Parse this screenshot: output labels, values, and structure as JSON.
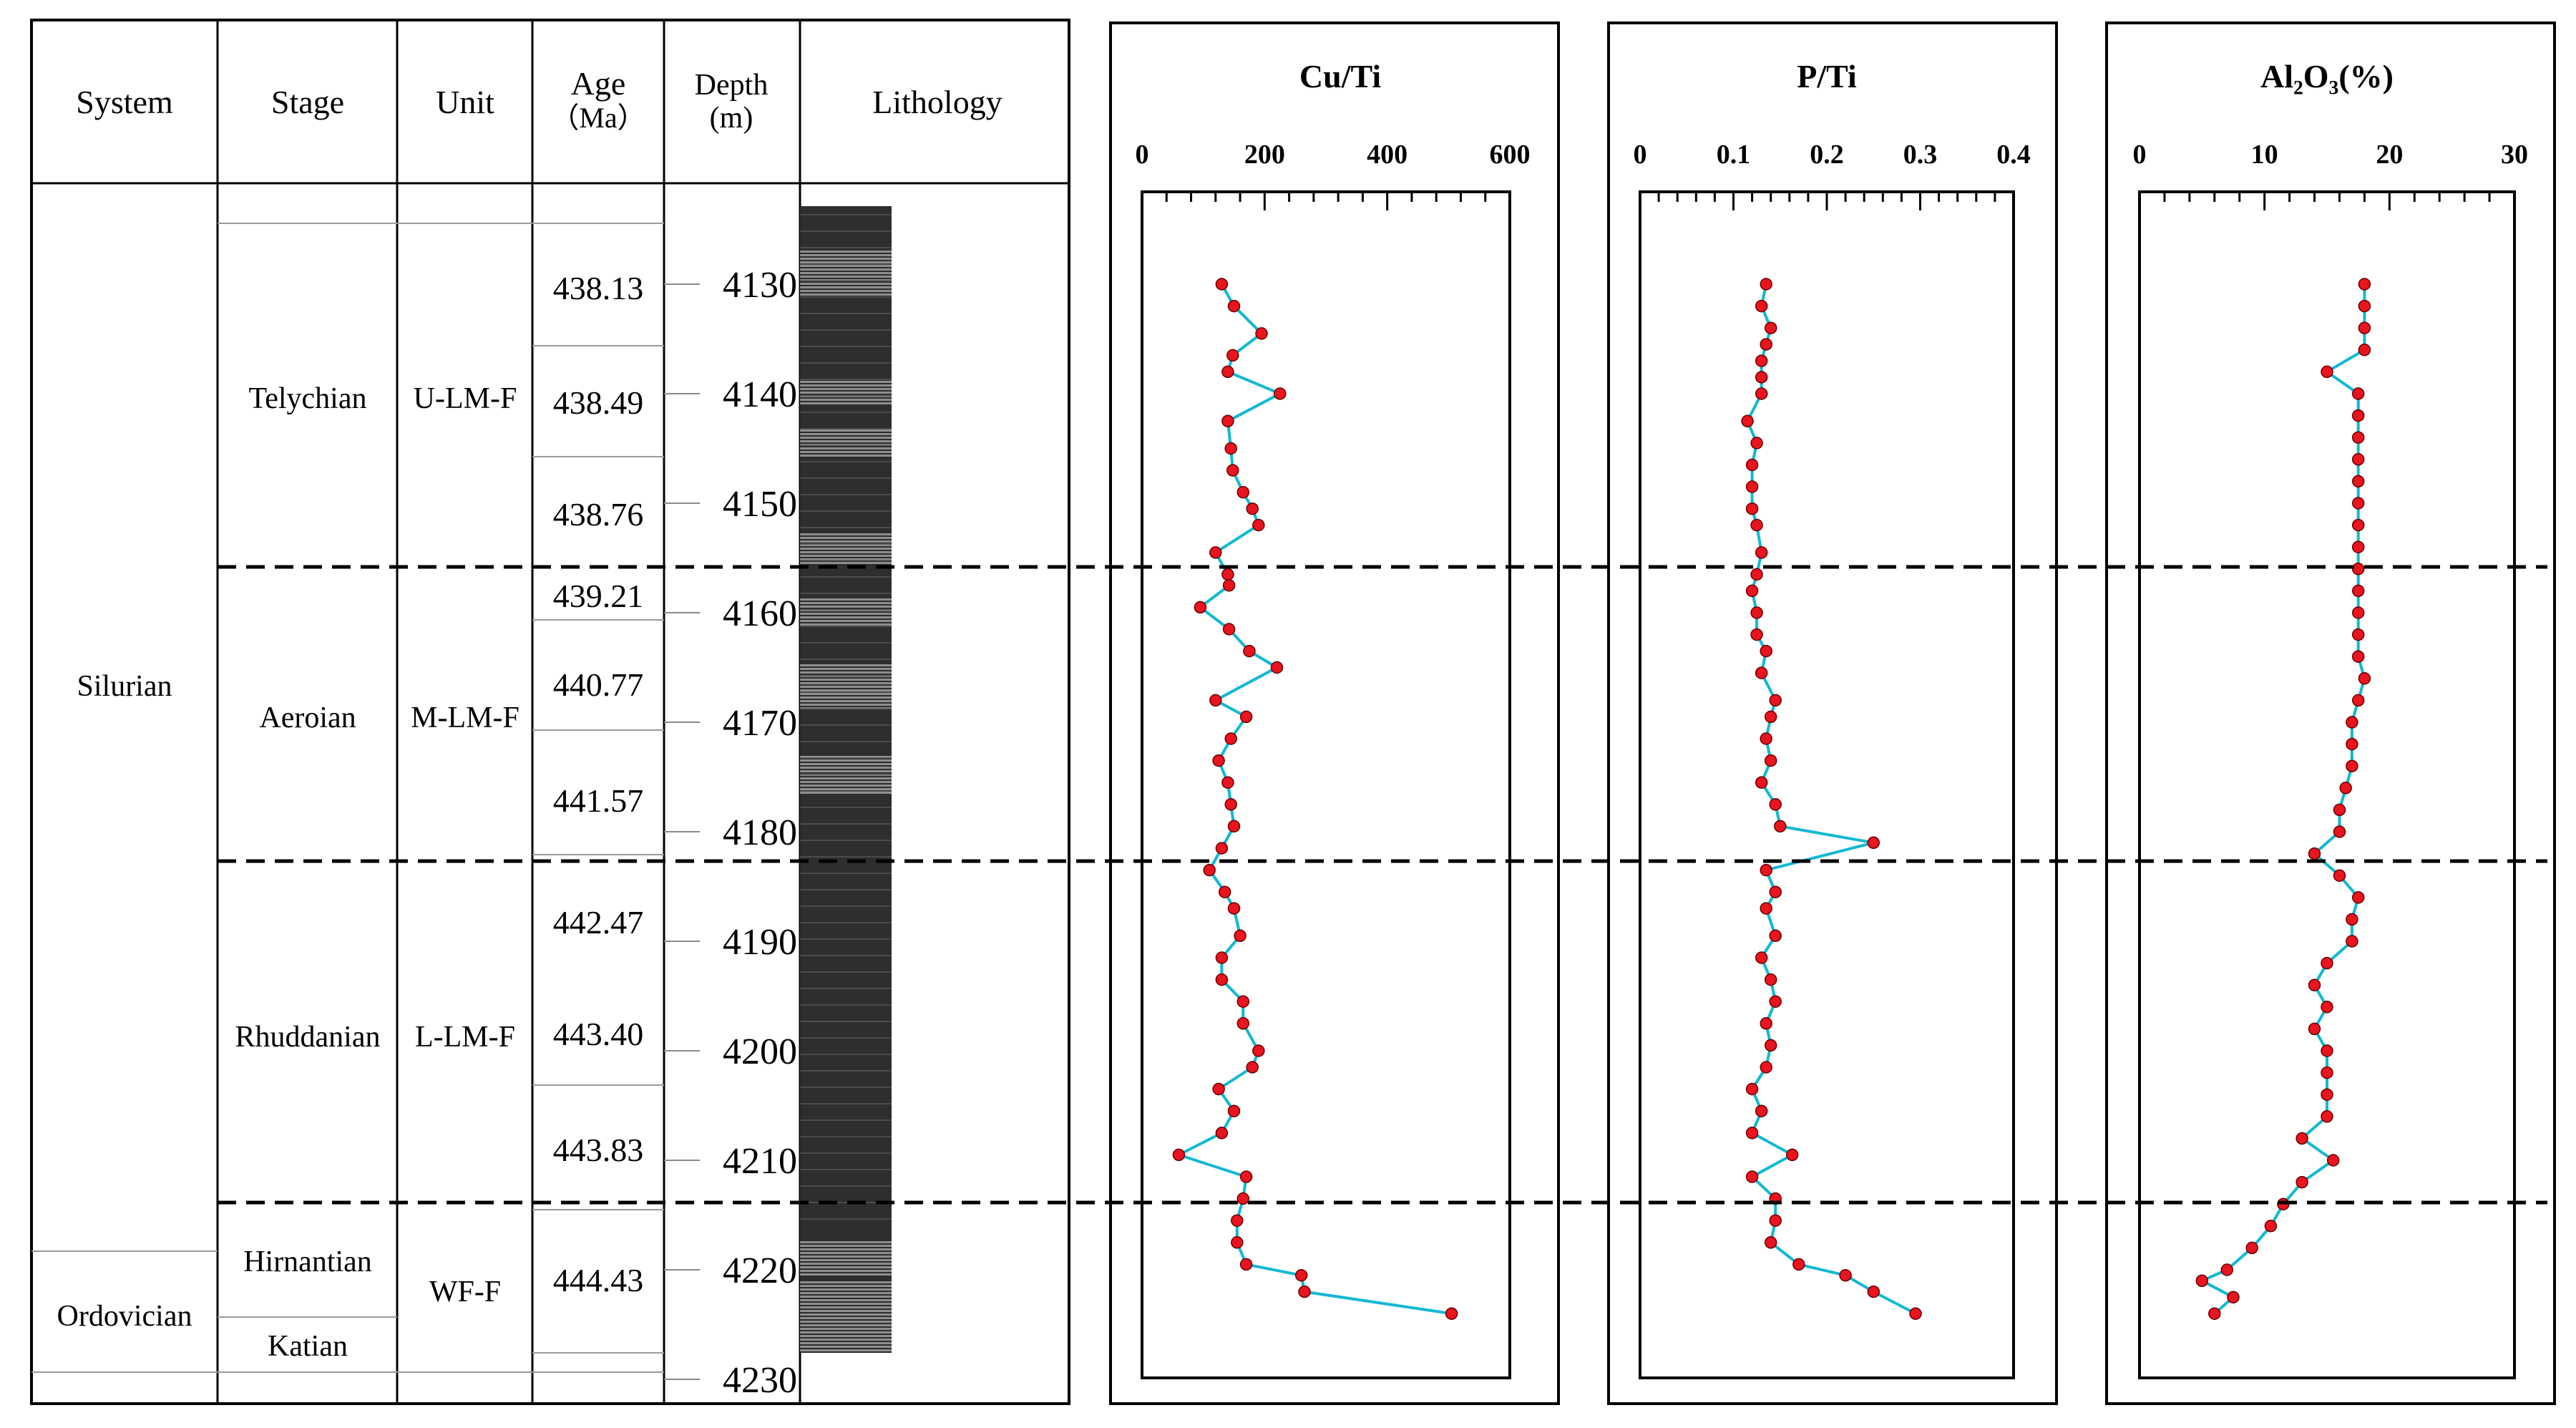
{
  "table": {
    "headers": {
      "system": "System",
      "stage": "Stage",
      "unit": "Unit",
      "age_line1": "Age",
      "age_line2": "（Ma）",
      "depth_line1": "Depth",
      "depth_line2": "(m)",
      "lithology": "Lithology"
    },
    "systems": [
      "Silurian",
      "Ordovician"
    ],
    "stages": [
      "Telychian",
      "Aeroian",
      "Rhuddanian",
      "Hirnantian",
      "Katian"
    ],
    "units": [
      "U-LM-F",
      "M-LM-F",
      "L-LM-F",
      "WF-F"
    ],
    "ages": [
      "438.13",
      "438.49",
      "438.76",
      "439.21",
      "440.77",
      "441.57",
      "442.47",
      "443.40",
      "443.83",
      "444.43"
    ],
    "depths": [
      "4130",
      "4140",
      "4150",
      "4160",
      "4170",
      "4180",
      "4190",
      "4200",
      "4210",
      "4220",
      "4230"
    ]
  },
  "chart_data": [
    {
      "type": "line",
      "title": "Cu/Ti",
      "x_ticks": [
        "0",
        "200",
        "400",
        "600"
      ],
      "xlim": [
        0,
        600
      ],
      "ylim": [
        4122,
        4230
      ],
      "y_inverted": true,
      "line_color": "#12b8d4",
      "marker_color": "#e8141e",
      "points": [
        {
          "depth": 4130,
          "value": 130
        },
        {
          "depth": 4132,
          "value": 150
        },
        {
          "depth": 4134.5,
          "value": 195
        },
        {
          "depth": 4136.5,
          "value": 148
        },
        {
          "depth": 4138,
          "value": 140
        },
        {
          "depth": 4140,
          "value": 225
        },
        {
          "depth": 4142.5,
          "value": 140
        },
        {
          "depth": 4145,
          "value": 145
        },
        {
          "depth": 4147,
          "value": 148
        },
        {
          "depth": 4149,
          "value": 165
        },
        {
          "depth": 4150.5,
          "value": 180
        },
        {
          "depth": 4152,
          "value": 190
        },
        {
          "depth": 4154.5,
          "value": 120
        },
        {
          "depth": 4156.5,
          "value": 140
        },
        {
          "depth": 4157.5,
          "value": 142
        },
        {
          "depth": 4159.5,
          "value": 95
        },
        {
          "depth": 4161.5,
          "value": 142
        },
        {
          "depth": 4163.5,
          "value": 175
        },
        {
          "depth": 4165,
          "value": 220
        },
        {
          "depth": 4168,
          "value": 120
        },
        {
          "depth": 4169.5,
          "value": 170
        },
        {
          "depth": 4171.5,
          "value": 145
        },
        {
          "depth": 4173.5,
          "value": 125
        },
        {
          "depth": 4175.5,
          "value": 140
        },
        {
          "depth": 4177.5,
          "value": 145
        },
        {
          "depth": 4179.5,
          "value": 150
        },
        {
          "depth": 4181.5,
          "value": 130
        },
        {
          "depth": 4183.5,
          "value": 110
        },
        {
          "depth": 4185.5,
          "value": 135
        },
        {
          "depth": 4187,
          "value": 150
        },
        {
          "depth": 4189.5,
          "value": 160
        },
        {
          "depth": 4191.5,
          "value": 130
        },
        {
          "depth": 4193.5,
          "value": 130
        },
        {
          "depth": 4195.5,
          "value": 165
        },
        {
          "depth": 4197.5,
          "value": 165
        },
        {
          "depth": 4200,
          "value": 190
        },
        {
          "depth": 4201.5,
          "value": 180
        },
        {
          "depth": 4203.5,
          "value": 125
        },
        {
          "depth": 4205.5,
          "value": 150
        },
        {
          "depth": 4207.5,
          "value": 130
        },
        {
          "depth": 4209.5,
          "value": 60
        },
        {
          "depth": 4211.5,
          "value": 170
        },
        {
          "depth": 4213.5,
          "value": 165
        },
        {
          "depth": 4215.5,
          "value": 155
        },
        {
          "depth": 4217.5,
          "value": 155
        },
        {
          "depth": 4219.5,
          "value": 170
        },
        {
          "depth": 4220.5,
          "value": 260
        },
        {
          "depth": 4222,
          "value": 265
        },
        {
          "depth": 4224,
          "value": 505
        }
      ]
    },
    {
      "type": "line",
      "title": "P/Ti",
      "x_ticks": [
        "0",
        "0.1",
        "0.2",
        "0.3",
        "0.4"
      ],
      "xlim": [
        0,
        0.4
      ],
      "ylim": [
        4122,
        4230
      ],
      "y_inverted": true,
      "line_color": "#12b8d4",
      "marker_color": "#e8141e",
      "points": [
        {
          "depth": 4130,
          "value": 0.135
        },
        {
          "depth": 4132,
          "value": 0.13
        },
        {
          "depth": 4134,
          "value": 0.14
        },
        {
          "depth": 4135.5,
          "value": 0.135
        },
        {
          "depth": 4137,
          "value": 0.13
        },
        {
          "depth": 4138.5,
          "value": 0.13
        },
        {
          "depth": 4140,
          "value": 0.13
        },
        {
          "depth": 4142.5,
          "value": 0.115
        },
        {
          "depth": 4144.5,
          "value": 0.125
        },
        {
          "depth": 4146.5,
          "value": 0.12
        },
        {
          "depth": 4148.5,
          "value": 0.12
        },
        {
          "depth": 4150.5,
          "value": 0.12
        },
        {
          "depth": 4152,
          "value": 0.125
        },
        {
          "depth": 4154.5,
          "value": 0.13
        },
        {
          "depth": 4156.5,
          "value": 0.125
        },
        {
          "depth": 4158,
          "value": 0.12
        },
        {
          "depth": 4160,
          "value": 0.125
        },
        {
          "depth": 4162,
          "value": 0.125
        },
        {
          "depth": 4163.5,
          "value": 0.135
        },
        {
          "depth": 4165.5,
          "value": 0.13
        },
        {
          "depth": 4168,
          "value": 0.145
        },
        {
          "depth": 4169.5,
          "value": 0.14
        },
        {
          "depth": 4171.5,
          "value": 0.135
        },
        {
          "depth": 4173.5,
          "value": 0.14
        },
        {
          "depth": 4175.5,
          "value": 0.13
        },
        {
          "depth": 4177.5,
          "value": 0.145
        },
        {
          "depth": 4179.5,
          "value": 0.15
        },
        {
          "depth": 4181,
          "value": 0.25
        },
        {
          "depth": 4183.5,
          "value": 0.135
        },
        {
          "depth": 4185.5,
          "value": 0.145
        },
        {
          "depth": 4187,
          "value": 0.135
        },
        {
          "depth": 4189.5,
          "value": 0.145
        },
        {
          "depth": 4191.5,
          "value": 0.13
        },
        {
          "depth": 4193.5,
          "value": 0.14
        },
        {
          "depth": 4195.5,
          "value": 0.145
        },
        {
          "depth": 4197.5,
          "value": 0.135
        },
        {
          "depth": 4199.5,
          "value": 0.14
        },
        {
          "depth": 4201.5,
          "value": 0.135
        },
        {
          "depth": 4203.5,
          "value": 0.12
        },
        {
          "depth": 4205.5,
          "value": 0.13
        },
        {
          "depth": 4207.5,
          "value": 0.12
        },
        {
          "depth": 4209.5,
          "value": 0.163
        },
        {
          "depth": 4211.5,
          "value": 0.12
        },
        {
          "depth": 4213.5,
          "value": 0.145
        },
        {
          "depth": 4215.5,
          "value": 0.145
        },
        {
          "depth": 4217.5,
          "value": 0.14
        },
        {
          "depth": 4219.5,
          "value": 0.17
        },
        {
          "depth": 4220.5,
          "value": 0.22
        },
        {
          "depth": 4222,
          "value": 0.25
        },
        {
          "depth": 4224,
          "value": 0.295
        }
      ]
    },
    {
      "type": "line",
      "title": "Al₂O₃(%)",
      "x_ticks": [
        "0",
        "10",
        "20",
        "30"
      ],
      "xlim": [
        0,
        30
      ],
      "ylim": [
        4122,
        4230
      ],
      "y_inverted": true,
      "line_color": "#12b8d4",
      "marker_color": "#e8141e",
      "points": [
        {
          "depth": 4130,
          "value": 18
        },
        {
          "depth": 4132,
          "value": 18
        },
        {
          "depth": 4134,
          "value": 18
        },
        {
          "depth": 4136,
          "value": 18
        },
        {
          "depth": 4138,
          "value": 15
        },
        {
          "depth": 4140,
          "value": 17.5
        },
        {
          "depth": 4142,
          "value": 17.5
        },
        {
          "depth": 4144,
          "value": 17.5
        },
        {
          "depth": 4146,
          "value": 17.5
        },
        {
          "depth": 4148,
          "value": 17.5
        },
        {
          "depth": 4150,
          "value": 17.5
        },
        {
          "depth": 4152,
          "value": 17.5
        },
        {
          "depth": 4154,
          "value": 17.5
        },
        {
          "depth": 4156,
          "value": 17.5
        },
        {
          "depth": 4158,
          "value": 17.5
        },
        {
          "depth": 4160,
          "value": 17.5
        },
        {
          "depth": 4162,
          "value": 17.5
        },
        {
          "depth": 4164,
          "value": 17.5
        },
        {
          "depth": 4166,
          "value": 18
        },
        {
          "depth": 4168,
          "value": 17.5
        },
        {
          "depth": 4170,
          "value": 17
        },
        {
          "depth": 4172,
          "value": 17
        },
        {
          "depth": 4174,
          "value": 17
        },
        {
          "depth": 4176,
          "value": 16.5
        },
        {
          "depth": 4178,
          "value": 16
        },
        {
          "depth": 4180,
          "value": 16
        },
        {
          "depth": 4182,
          "value": 14
        },
        {
          "depth": 4184,
          "value": 16
        },
        {
          "depth": 4186,
          "value": 17.5
        },
        {
          "depth": 4188,
          "value": 17
        },
        {
          "depth": 4190,
          "value": 17
        },
        {
          "depth": 4192,
          "value": 15
        },
        {
          "depth": 4194,
          "value": 14
        },
        {
          "depth": 4196,
          "value": 15
        },
        {
          "depth": 4198,
          "value": 14
        },
        {
          "depth": 4200,
          "value": 15
        },
        {
          "depth": 4202,
          "value": 15
        },
        {
          "depth": 4204,
          "value": 15
        },
        {
          "depth": 4206,
          "value": 15
        },
        {
          "depth": 4208,
          "value": 13
        },
        {
          "depth": 4210,
          "value": 15.5
        },
        {
          "depth": 4212,
          "value": 13
        },
        {
          "depth": 4214,
          "value": 11.5
        },
        {
          "depth": 4216,
          "value": 10.5
        },
        {
          "depth": 4218,
          "value": 9
        },
        {
          "depth": 4220,
          "value": 7
        },
        {
          "depth": 4221,
          "value": 5
        },
        {
          "depth": 4222.5,
          "value": 7.5
        },
        {
          "depth": 4224,
          "value": 6
        }
      ]
    }
  ]
}
